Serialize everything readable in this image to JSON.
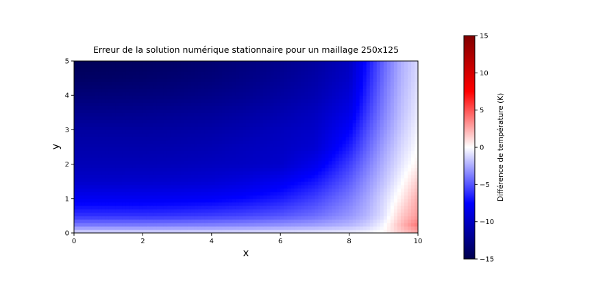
{
  "chart_data": {
    "type": "heatmap",
    "title": "Erreur de la solution numérique stationnaire pour un maillage 250x125",
    "xlabel": "x",
    "ylabel": "y",
    "xlim": [
      0,
      10
    ],
    "ylim": [
      0,
      5
    ],
    "x_ticks": [
      0,
      2,
      4,
      6,
      8,
      10
    ],
    "y_ticks": [
      0,
      1,
      2,
      3,
      4,
      5
    ],
    "x_tick_labels": [
      "0",
      "2",
      "4",
      "6",
      "8",
      "10"
    ],
    "y_tick_labels": [
      "0",
      "1",
      "2",
      "3",
      "4",
      "5"
    ],
    "colormap": "seismic",
    "colorbar": {
      "label": "Différence de température (K)",
      "range": [
        -15,
        15
      ],
      "ticks": [
        -15,
        -10,
        -5,
        0,
        5,
        10,
        15
      ],
      "tick_labels": [
        "−15",
        "−10",
        "−5",
        "0",
        "5",
        "10",
        "15"
      ]
    },
    "grid_x": [
      0,
      1,
      2,
      3,
      4,
      5,
      6,
      7,
      8,
      8.5,
      9,
      9.5,
      10
    ],
    "grid_y": [
      0,
      0.25,
      0.5,
      1,
      1.5,
      2,
      2.5,
      3,
      3.5,
      4,
      4.5,
      5
    ],
    "values": [
      [
        -1.0,
        -1.0,
        -1.0,
        -1.0,
        -1.0,
        -0.9,
        -0.8,
        -0.7,
        -0.5,
        -0.3,
        0.2,
        1.5,
        2.5
      ],
      [
        -4.0,
        -4.0,
        -4.0,
        -3.9,
        -3.8,
        -3.6,
        -3.3,
        -2.9,
        -2.2,
        -1.5,
        -0.3,
        2.0,
        4.0
      ],
      [
        -6.0,
        -6.0,
        -6.0,
        -5.9,
        -5.7,
        -5.4,
        -5.0,
        -4.3,
        -3.1,
        -2.2,
        -0.9,
        1.5,
        3.0
      ],
      [
        -8.0,
        -8.0,
        -8.0,
        -7.9,
        -7.7,
        -7.3,
        -6.7,
        -5.6,
        -3.9,
        -2.7,
        -1.2,
        0.5,
        2.5
      ],
      [
        -9.7,
        -9.7,
        -9.6,
        -9.5,
        -9.3,
        -8.8,
        -8.1,
        -6.9,
        -4.8,
        -3.3,
        -1.8,
        -0.2,
        1.5
      ],
      [
        -10.5,
        -10.5,
        -10.5,
        -10.4,
        -10.2,
        -10.0,
        -9.7,
        -8.3,
        -5.7,
        -4.0,
        -2.3,
        -0.8,
        0.5
      ],
      [
        -11.0,
        -11.0,
        -11.0,
        -10.9,
        -10.7,
        -10.3,
        -10.0,
        -9.4,
        -6.7,
        -4.7,
        -2.8,
        -1.2,
        0.0
      ],
      [
        -11.5,
        -11.5,
        -11.5,
        -11.4,
        -11.2,
        -10.8,
        -10.3,
        -9.8,
        -7.6,
        -5.3,
        -3.3,
        -1.6,
        -0.3
      ],
      [
        -12.3,
        -12.3,
        -12.2,
        -12.0,
        -11.8,
        -11.4,
        -10.9,
        -10.2,
        -8.5,
        -5.9,
        -3.7,
        -1.9,
        -0.6
      ],
      [
        -13.2,
        -13.1,
        -13.0,
        -12.8,
        -12.5,
        -12.1,
        -11.5,
        -10.8,
        -9.2,
        -6.4,
        -4.0,
        -2.1,
        -0.8
      ],
      [
        -14.0,
        -13.9,
        -13.7,
        -13.4,
        -13.1,
        -12.6,
        -12.0,
        -11.2,
        -9.8,
        -6.8,
        -4.3,
        -2.3,
        -1.0
      ],
      [
        -14.6,
        -14.4,
        -14.2,
        -13.9,
        -13.5,
        -13.0,
        -12.4,
        -11.6,
        -10.2,
        -7.1,
        -4.5,
        -2.4,
        -1.1
      ]
    ]
  }
}
